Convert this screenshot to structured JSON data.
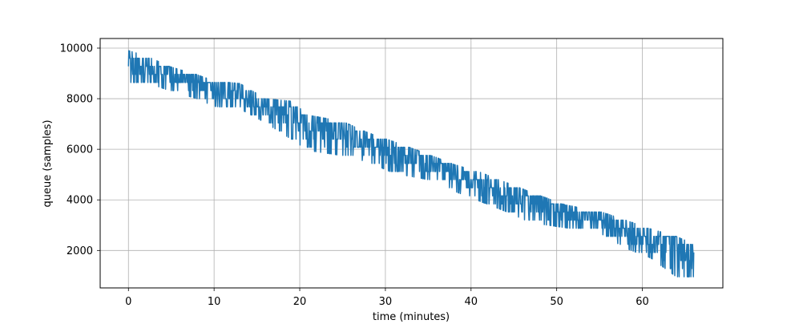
{
  "chart_data": {
    "type": "line",
    "title": "",
    "xlabel": "time (minutes)",
    "ylabel": "queue (samples)",
    "xlim": [
      -3.3,
      69.4
    ],
    "ylim": [
      520,
      10380
    ],
    "xticks": [
      0,
      10,
      20,
      30,
      40,
      50,
      60
    ],
    "xtick_labels": [
      "0",
      "10",
      "20",
      "30",
      "40",
      "50",
      "60"
    ],
    "yticks": [
      2000,
      4000,
      6000,
      8000,
      10000
    ],
    "ytick_labels": [
      "2000",
      "4000",
      "6000",
      "8000",
      "10000"
    ],
    "grid": true,
    "series": [
      {
        "color": "#1f77b4",
        "upper_envelope": {
          "x": [
            0,
            2,
            5,
            8,
            10,
            13,
            16,
            19,
            21,
            25,
            28,
            31,
            35,
            38,
            41,
            44,
            47,
            51,
            55,
            58,
            61,
            64,
            66
          ],
          "y": [
            9900,
            9700,
            9250,
            8950,
            8700,
            8600,
            8000,
            7900,
            7350,
            7100,
            6650,
            6300,
            5800,
            5400,
            5100,
            4700,
            4300,
            3800,
            3550,
            3200,
            2850,
            2550,
            2250
          ]
        },
        "lower_envelope": {
          "x": [
            0,
            2,
            5,
            8,
            10,
            13,
            16,
            19,
            21,
            25,
            28,
            31,
            35,
            38,
            41,
            44,
            47,
            51,
            55,
            58,
            61,
            64,
            66
          ],
          "y": [
            8600,
            8650,
            8300,
            8000,
            7700,
            7600,
            7050,
            6400,
            5950,
            5750,
            5500,
            5050,
            4800,
            4350,
            3950,
            3550,
            3100,
            2900,
            2700,
            2100,
            1700,
            950,
            950
          ]
        }
      }
    ]
  }
}
